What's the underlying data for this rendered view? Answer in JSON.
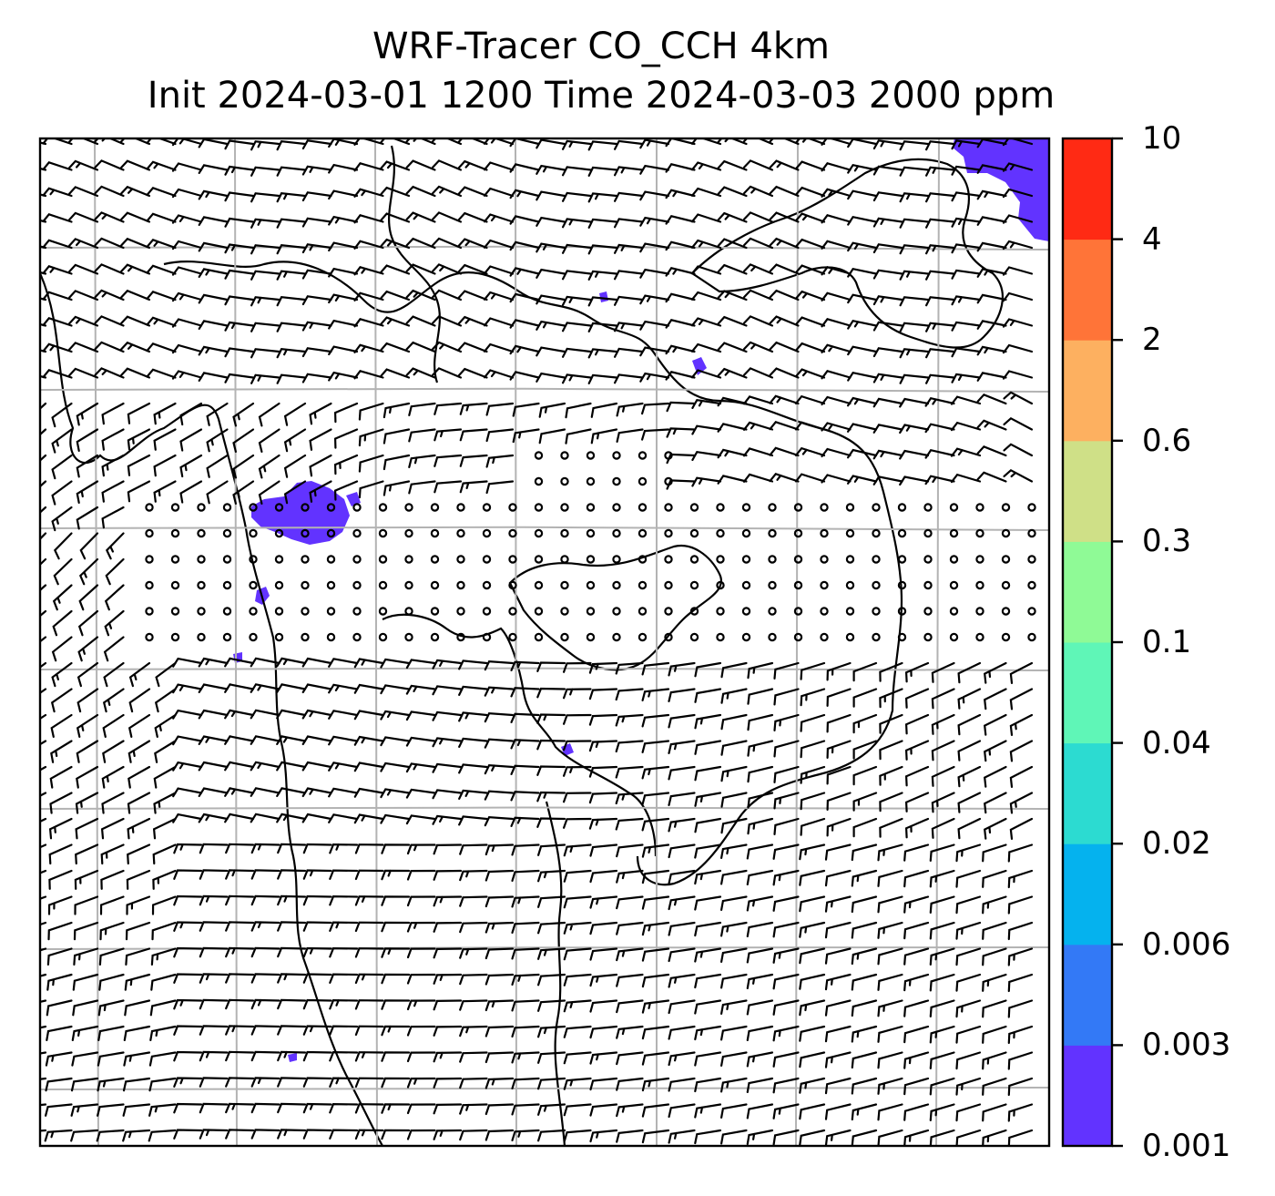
{
  "figure": {
    "title_line1": "WRF-Tracer CO_CCH 4km",
    "title_line2": "Init 2024-03-01 1200 Time 2024-03-03 2000 ppm"
  },
  "colorbar": {
    "levels": [
      "0.001",
      "0.003",
      "0.006",
      "0.02",
      "0.04",
      "0.1",
      "0.3",
      "0.6",
      "2",
      "4",
      "10"
    ],
    "colors": [
      "#6233ff",
      "#3379f6",
      "#05b2ee",
      "#2cdbd1",
      "#5ff6b7",
      "#8ffa96",
      "#cfe087",
      "#fdb060",
      "#ff7438",
      "#ff2a14"
    ]
  },
  "map": {
    "variable": "CO_CCH tracer concentration",
    "units": "ppm",
    "overlay": "wind barbs",
    "gridlines": true,
    "coastlines": true
  }
}
